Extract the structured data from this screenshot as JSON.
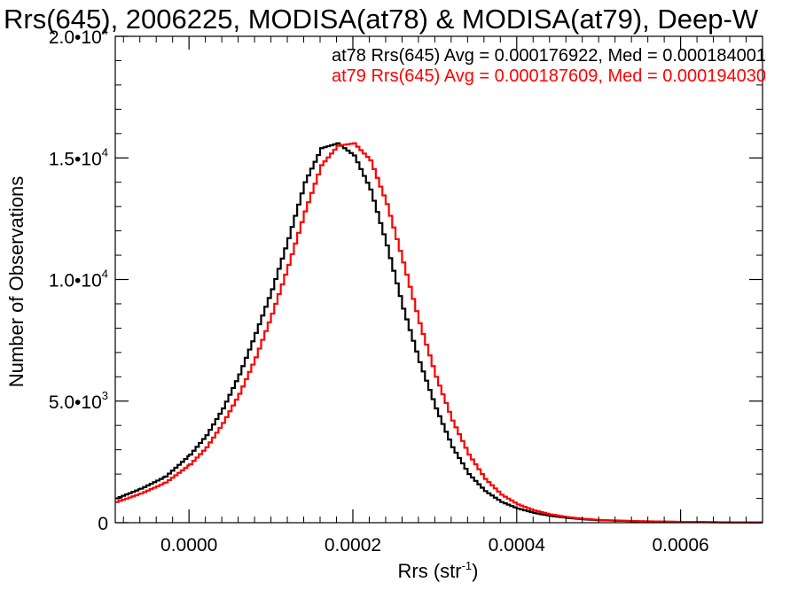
{
  "chart_data": {
    "type": "line",
    "title": "Rrs(645), 2006225, MODISA(at78) & MODISA(at79), Deep-W",
    "xlabel": "Rrs (str",
    "xlabel_sup": "-1",
    "xlabel_close": ")",
    "ylabel": "Number of Observations",
    "xlim": [
      -9e-05,
      0.0007
    ],
    "ylim": [
      0,
      20000
    ],
    "x_ticks": [
      {
        "value": 0.0,
        "label": "0.0000"
      },
      {
        "value": 0.0002,
        "label": "0.0002"
      },
      {
        "value": 0.0004,
        "label": "0.0004"
      },
      {
        "value": 0.0006,
        "label": "0.0006"
      }
    ],
    "y_ticks": [
      {
        "value": 0,
        "label": "0",
        "sup": ""
      },
      {
        "value": 5000,
        "label": "5.0•10",
        "sup": "3"
      },
      {
        "value": 10000,
        "label": "1.0•10",
        "sup": "4"
      },
      {
        "value": 15000,
        "label": "1.5•10",
        "sup": "4"
      },
      {
        "value": 20000,
        "label": "2.0•10",
        "sup": "4"
      }
    ],
    "annotations": [
      {
        "text": "at78 Rrs(645) Avg = 0.000176922, Med = 0.000184001",
        "color": "#000000"
      },
      {
        "text": "at79 Rrs(645) Avg = 0.000187609, Med = 0.000194030",
        "color": "#ff0000"
      }
    ],
    "series": [
      {
        "color": "#000000",
        "x": [
          -9e-05,
          -6e-05,
          -3e-05,
          0.0,
          2e-05,
          4e-05,
          6e-05,
          8e-05,
          0.0001,
          0.00012,
          0.00014,
          0.00016,
          0.00018,
          0.0002,
          0.00022,
          0.00024,
          0.00026,
          0.00028,
          0.0003,
          0.00032,
          0.00034,
          0.00036,
          0.00038,
          0.0004,
          0.00042,
          0.00044,
          0.00046,
          0.00048,
          0.0005,
          0.00055,
          0.0006,
          0.00065,
          0.0007
        ],
        "y": [
          1000,
          1400,
          1900,
          2800,
          3600,
          4700,
          6100,
          7800,
          9600,
          11700,
          14000,
          15400,
          15600,
          15100,
          13700,
          11400,
          8800,
          6600,
          4700,
          3100,
          2000,
          1300,
          850,
          580,
          400,
          280,
          200,
          140,
          100,
          55,
          30,
          15,
          8
        ]
      },
      {
        "color": "#ff0000",
        "x": [
          -9e-05,
          -6e-05,
          -3e-05,
          0.0,
          2e-05,
          4e-05,
          6e-05,
          8e-05,
          0.0001,
          0.00012,
          0.00014,
          0.00016,
          0.00018,
          0.0002,
          0.00022,
          0.00024,
          0.00026,
          0.00028,
          0.0003,
          0.00032,
          0.00034,
          0.00036,
          0.00038,
          0.0004,
          0.00042,
          0.00044,
          0.00046,
          0.00048,
          0.0005,
          0.00055,
          0.0006,
          0.00065,
          0.0007
        ],
        "y": [
          850,
          1200,
          1650,
          2400,
          3100,
          4100,
          5300,
          6800,
          8600,
          10600,
          12800,
          14700,
          15500,
          15600,
          14900,
          13100,
          10700,
          8200,
          6000,
          4200,
          2800,
          1800,
          1150,
          750,
          500,
          340,
          230,
          160,
          110,
          60,
          35,
          18,
          10
        ]
      }
    ]
  }
}
